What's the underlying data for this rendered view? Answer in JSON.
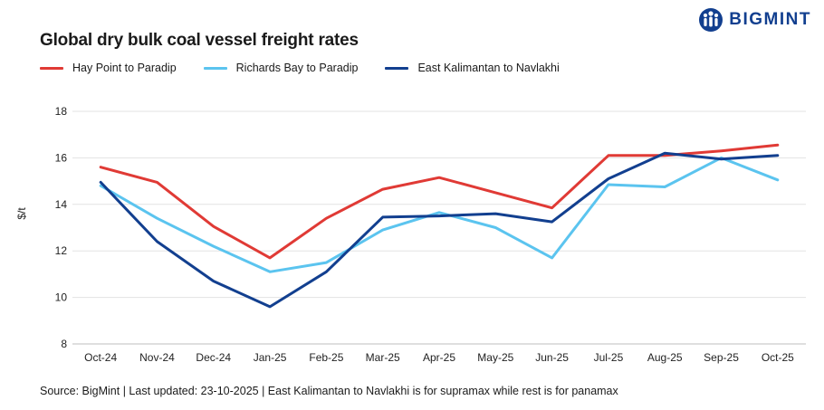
{
  "brand": {
    "name": "BIGMINT",
    "color": "#123f8f"
  },
  "chart_data": {
    "type": "line",
    "title": "Global dry bulk coal vessel freight rates",
    "ylabel": "$/t",
    "xlabel": "",
    "ylim": [
      8,
      18
    ],
    "yticks": [
      "8",
      "10",
      "12",
      "14",
      "16",
      "18"
    ],
    "grid": true,
    "legend_position": "top-left",
    "categories": [
      "Oct-24",
      "Nov-24",
      "Dec-24",
      "Jan-25",
      "Feb-25",
      "Mar-25",
      "Apr-25",
      "May-25",
      "Jun-25",
      "Jul-25",
      "Aug-25",
      "Sep-25",
      "Oct-25"
    ],
    "series": [
      {
        "name": "Hay Point to Paradip",
        "color": "#e03a35",
        "values": [
          15.6,
          14.95,
          13.05,
          11.7,
          13.4,
          14.65,
          15.15,
          14.5,
          13.85,
          16.1,
          16.1,
          16.3,
          16.55
        ]
      },
      {
        "name": "Richards Bay to Paradip",
        "color": "#5bc4ef",
        "values": [
          14.8,
          13.4,
          12.2,
          11.1,
          11.5,
          12.9,
          13.65,
          13.0,
          11.7,
          14.85,
          14.75,
          16.0,
          15.05
        ]
      },
      {
        "name": "East Kalimantan to Navlakhi",
        "color": "#123f8f",
        "values": [
          14.95,
          12.4,
          10.7,
          9.6,
          11.1,
          13.45,
          13.5,
          13.6,
          13.25,
          15.1,
          16.2,
          15.95,
          16.1
        ]
      }
    ]
  },
  "source": "Source: BigMint | Last updated: 23-10-2025 | East Kalimantan to Navlakhi is for supramax while rest is for panamax"
}
